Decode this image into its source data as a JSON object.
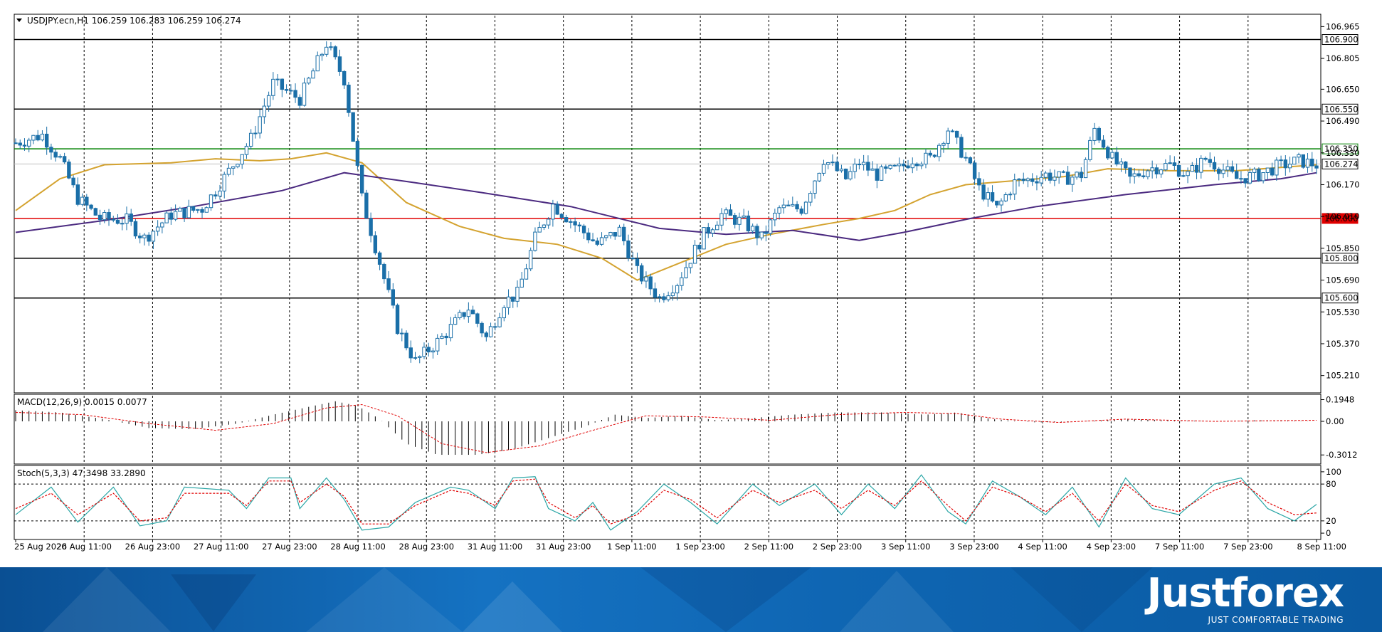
{
  "chart_data": [
    {
      "type": "candlestick",
      "header": "USDJPY.ecn,H1  106.259 106.283 106.259 106.274",
      "ylim": [
        105.13,
        107.02
      ],
      "yticks": [
        106.965,
        106.805,
        106.65,
        106.49,
        106.33,
        106.17,
        106.01,
        105.85,
        105.69,
        105.53,
        105.37,
        105.21
      ],
      "xticks": [
        "25 Aug 2020",
        "26 Aug 11:00",
        "26 Aug 23:00",
        "27 Aug 11:00",
        "27 Aug 23:00",
        "28 Aug 11:00",
        "28 Aug 23:00",
        "31 Aug 11:00",
        "31 Aug 23:00",
        "1 Sep 11:00",
        "1 Sep 23:00",
        "2 Sep 11:00",
        "2 Sep 23:00",
        "3 Sep 11:00",
        "3 Sep 23:00",
        "4 Sep 11:00",
        "4 Sep 23:00",
        "7 Sep 11:00",
        "7 Sep 23:00",
        "8 Sep 11:00"
      ],
      "levels": [
        {
          "value": 106.9,
          "label": "106.900",
          "color": "#000000"
        },
        {
          "value": 106.55,
          "label": "106.550",
          "color": "#000000"
        },
        {
          "value": 106.35,
          "label": "106.350",
          "color": "#008000"
        },
        {
          "value": 106.0,
          "label": "106.000",
          "color": "#e00000"
        },
        {
          "value": 105.8,
          "label": "105.800",
          "color": "#000000"
        },
        {
          "value": 105.6,
          "label": "105.600",
          "color": "#000000"
        }
      ],
      "current": {
        "value": 106.274,
        "label": "106.274"
      },
      "candle_color": "#1a6fa8",
      "close_path": [
        [
          0,
          106.38
        ],
        [
          6,
          106.42
        ],
        [
          10,
          106.3
        ],
        [
          14,
          106.1
        ],
        [
          19,
          106.0
        ],
        [
          25,
          105.99
        ],
        [
          29,
          105.9
        ],
        [
          35,
          106.02
        ],
        [
          42,
          106.05
        ],
        [
          45,
          106.14
        ],
        [
          53,
          106.4
        ],
        [
          58,
          106.68
        ],
        [
          64,
          106.6
        ],
        [
          70,
          106.88
        ],
        [
          74,
          106.7
        ],
        [
          78,
          106.1
        ],
        [
          82,
          105.78
        ],
        [
          86,
          105.45
        ],
        [
          90,
          105.28
        ],
        [
          96,
          105.4
        ],
        [
          102,
          105.55
        ],
        [
          106,
          105.4
        ],
        [
          110,
          105.58
        ],
        [
          113,
          105.62
        ],
        [
          117,
          105.9
        ],
        [
          121,
          106.07
        ],
        [
          127,
          105.95
        ],
        [
          131,
          105.87
        ],
        [
          136,
          105.94
        ],
        [
          140,
          105.73
        ],
        [
          145,
          105.6
        ],
        [
          149,
          105.68
        ],
        [
          155,
          105.92
        ],
        [
          159,
          106.02
        ],
        [
          164,
          105.98
        ],
        [
          168,
          105.9
        ],
        [
          172,
          106.05
        ],
        [
          177,
          106.05
        ],
        [
          182,
          106.3
        ],
        [
          187,
          106.2
        ],
        [
          190,
          106.28
        ],
        [
          194,
          106.22
        ],
        [
          199,
          106.25
        ],
        [
          202,
          106.3
        ],
        [
          206,
          106.3
        ],
        [
          210,
          106.45
        ],
        [
          214,
          106.3
        ],
        [
          217,
          106.15
        ],
        [
          221,
          106.05
        ],
        [
          225,
          106.18
        ],
        [
          229,
          106.2
        ],
        [
          232,
          106.22
        ],
        [
          236,
          106.2
        ],
        [
          240,
          106.22
        ],
        [
          243,
          106.45
        ],
        [
          247,
          106.3
        ],
        [
          251,
          106.2
        ],
        [
          255,
          106.25
        ],
        [
          260,
          106.27
        ],
        [
          264,
          106.22
        ],
        [
          268,
          106.3
        ],
        [
          271,
          106.26
        ],
        [
          275,
          106.2
        ],
        [
          280,
          106.22
        ],
        [
          284,
          106.26
        ],
        [
          289,
          106.29
        ],
        [
          293,
          106.27
        ]
      ],
      "series": [
        {
          "name": "",
          "color": "#d4a330",
          "values": [
            [
              0,
              106.04
            ],
            [
              10,
              106.2
            ],
            [
              20,
              106.27
            ],
            [
              35,
              106.28
            ],
            [
              45,
              106.3
            ],
            [
              55,
              106.29
            ],
            [
              62,
              106.3
            ],
            [
              70,
              106.33
            ],
            [
              78,
              106.28
            ],
            [
              88,
              106.08
            ],
            [
              100,
              105.96
            ],
            [
              110,
              105.9
            ],
            [
              122,
              105.87
            ],
            [
              132,
              105.8
            ],
            [
              140,
              105.69
            ],
            [
              150,
              105.78
            ],
            [
              160,
              105.87
            ],
            [
              170,
              105.92
            ],
            [
              182,
              105.97
            ],
            [
              190,
              106.0
            ],
            [
              198,
              106.04
            ],
            [
              206,
              106.12
            ],
            [
              214,
              106.17
            ],
            [
              225,
              106.19
            ],
            [
              236,
              106.21
            ],
            [
              246,
              106.25
            ],
            [
              260,
              106.24
            ],
            [
              275,
              106.24
            ],
            [
              293,
              106.27
            ]
          ]
        },
        {
          "name": "",
          "color": "#4b2a80",
          "values": [
            [
              0,
              105.93
            ],
            [
              20,
              105.99
            ],
            [
              40,
              106.06
            ],
            [
              60,
              106.14
            ],
            [
              74,
              106.23
            ],
            [
              90,
              106.18
            ],
            [
              105,
              106.13
            ],
            [
              125,
              106.06
            ],
            [
              145,
              105.95
            ],
            [
              160,
              105.92
            ],
            [
              175,
              105.94
            ],
            [
              190,
              105.89
            ],
            [
              200,
              105.93
            ],
            [
              215,
              106.0
            ],
            [
              230,
              106.06
            ],
            [
              250,
              106.12
            ],
            [
              270,
              106.17
            ],
            [
              285,
              106.2
            ],
            [
              293,
              106.23
            ]
          ]
        }
      ]
    },
    {
      "type": "histogram",
      "header": "MACD(12,26,9) 0.0015 0.0077",
      "ylim": [
        -0.37,
        0.23
      ],
      "yticks": [
        0.1948,
        0.0,
        -0.3012
      ],
      "ytick_labels": [
        "0.1948",
        "0.00",
        "-0.3012"
      ],
      "bar_color": "#000000",
      "signal_color": "#e00000",
      "hist_path": [
        [
          0,
          0.1
        ],
        [
          10,
          0.08
        ],
        [
          20,
          0.02
        ],
        [
          30,
          -0.06
        ],
        [
          40,
          -0.07
        ],
        [
          50,
          -0.02
        ],
        [
          58,
          0.06
        ],
        [
          66,
          0.13
        ],
        [
          72,
          0.18
        ],
        [
          77,
          0.14
        ],
        [
          82,
          0.02
        ],
        [
          88,
          -0.2
        ],
        [
          95,
          -0.3
        ],
        [
          104,
          -0.3
        ],
        [
          112,
          -0.25
        ],
        [
          120,
          -0.15
        ],
        [
          128,
          -0.05
        ],
        [
          135,
          0.06
        ],
        [
          142,
          0.03
        ],
        [
          150,
          0.05
        ],
        [
          158,
          0.01
        ],
        [
          166,
          0.03
        ],
        [
          175,
          0.06
        ],
        [
          185,
          0.08
        ],
        [
          195,
          0.08
        ],
        [
          205,
          0.06
        ],
        [
          212,
          0.08
        ],
        [
          220,
          0.02
        ],
        [
          230,
          -0.01
        ],
        [
          240,
          0.0
        ],
        [
          250,
          0.02
        ],
        [
          260,
          0.01
        ],
        [
          270,
          0.0
        ],
        [
          280,
          0.01
        ],
        [
          293,
          0.0
        ]
      ],
      "signal_path": [
        [
          0,
          0.08
        ],
        [
          15,
          0.06
        ],
        [
          30,
          -0.02
        ],
        [
          45,
          -0.08
        ],
        [
          58,
          -0.02
        ],
        [
          70,
          0.12
        ],
        [
          78,
          0.15
        ],
        [
          86,
          0.05
        ],
        [
          96,
          -0.2
        ],
        [
          106,
          -0.28
        ],
        [
          118,
          -0.22
        ],
        [
          130,
          -0.08
        ],
        [
          142,
          0.05
        ],
        [
          155,
          0.04
        ],
        [
          170,
          0.01
        ],
        [
          185,
          0.06
        ],
        [
          200,
          0.08
        ],
        [
          212,
          0.07
        ],
        [
          222,
          0.02
        ],
        [
          235,
          -0.01
        ],
        [
          250,
          0.02
        ],
        [
          270,
          0.0
        ],
        [
          293,
          0.01
        ]
      ]
    },
    {
      "type": "line",
      "header": "Stoch(5,3,3) 47.3498 33.2890",
      "ylim": [
        -8,
        108
      ],
      "yticks": [
        100,
        80,
        20,
        0
      ],
      "ytick_labels": [
        "100",
        "80",
        "20",
        "0"
      ],
      "levels": [
        80,
        20
      ],
      "series": [
        {
          "name": "",
          "color": "#2aa6a6",
          "values": [
            [
              0,
              30
            ],
            [
              8,
              75
            ],
            [
              14,
              18
            ],
            [
              22,
              75
            ],
            [
              28,
              12
            ],
            [
              34,
              20
            ],
            [
              38,
              75
            ],
            [
              48,
              70
            ],
            [
              52,
              40
            ],
            [
              57,
              90
            ],
            [
              62,
              90
            ],
            [
              64,
              40
            ],
            [
              70,
              90
            ],
            [
              74,
              55
            ],
            [
              78,
              5
            ],
            [
              84,
              10
            ],
            [
              90,
              50
            ],
            [
              98,
              75
            ],
            [
              102,
              70
            ],
            [
              108,
              40
            ],
            [
              112,
              90
            ],
            [
              117,
              92
            ],
            [
              120,
              40
            ],
            [
              126,
              20
            ],
            [
              130,
              50
            ],
            [
              134,
              5
            ],
            [
              140,
              35
            ],
            [
              146,
              80
            ],
            [
              152,
              50
            ],
            [
              158,
              15
            ],
            [
              166,
              80
            ],
            [
              172,
              45
            ],
            [
              180,
              80
            ],
            [
              186,
              30
            ],
            [
              192,
              80
            ],
            [
              198,
              40
            ],
            [
              204,
              95
            ],
            [
              210,
              35
            ],
            [
              214,
              15
            ],
            [
              220,
              85
            ],
            [
              226,
              60
            ],
            [
              232,
              30
            ],
            [
              238,
              75
            ],
            [
              244,
              10
            ],
            [
              250,
              90
            ],
            [
              256,
              40
            ],
            [
              262,
              30
            ],
            [
              270,
              80
            ],
            [
              276,
              90
            ],
            [
              282,
              40
            ],
            [
              288,
              20
            ],
            [
              293,
              47
            ]
          ]
        },
        {
          "name": "",
          "color": "#e00000",
          "values": [
            [
              0,
              40
            ],
            [
              8,
              65
            ],
            [
              14,
              30
            ],
            [
              22,
              65
            ],
            [
              28,
              20
            ],
            [
              34,
              25
            ],
            [
              38,
              65
            ],
            [
              48,
              65
            ],
            [
              52,
              45
            ],
            [
              57,
              85
            ],
            [
              62,
              85
            ],
            [
              64,
              50
            ],
            [
              70,
              80
            ],
            [
              74,
              60
            ],
            [
              78,
              15
            ],
            [
              84,
              15
            ],
            [
              90,
              45
            ],
            [
              98,
              70
            ],
            [
              102,
              65
            ],
            [
              108,
              45
            ],
            [
              112,
              85
            ],
            [
              117,
              88
            ],
            [
              120,
              50
            ],
            [
              126,
              25
            ],
            [
              130,
              45
            ],
            [
              134,
              15
            ],
            [
              140,
              30
            ],
            [
              146,
              70
            ],
            [
              152,
              55
            ],
            [
              158,
              25
            ],
            [
              166,
              70
            ],
            [
              172,
              50
            ],
            [
              180,
              70
            ],
            [
              186,
              40
            ],
            [
              192,
              70
            ],
            [
              198,
              45
            ],
            [
              204,
              85
            ],
            [
              210,
              45
            ],
            [
              214,
              20
            ],
            [
              220,
              75
            ],
            [
              226,
              60
            ],
            [
              232,
              35
            ],
            [
              238,
              65
            ],
            [
              244,
              20
            ],
            [
              250,
              80
            ],
            [
              256,
              45
            ],
            [
              262,
              35
            ],
            [
              270,
              70
            ],
            [
              276,
              85
            ],
            [
              282,
              50
            ],
            [
              288,
              30
            ],
            [
              293,
              33
            ]
          ]
        }
      ]
    }
  ],
  "branding": {
    "logo": "Justforex",
    "tagline": "JUST COMFORTABLE TRADING"
  }
}
